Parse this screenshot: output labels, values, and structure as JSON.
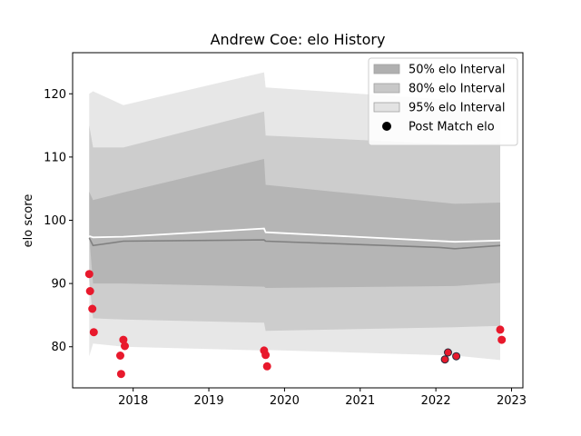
{
  "chart_data": {
    "type": "line",
    "title": "Andrew Coe: elo History",
    "xlabel": "",
    "ylabel": "elo score",
    "xlim": [
      2017.2,
      2023.15
    ],
    "ylim": [
      73.5,
      126.5
    ],
    "xticks": [
      {
        "value": 2018,
        "label": "2018"
      },
      {
        "value": 2019,
        "label": "2019"
      },
      {
        "value": 2020,
        "label": "2020"
      },
      {
        "value": 2021,
        "label": "2021"
      },
      {
        "value": 2022,
        "label": "2022"
      },
      {
        "value": 2023,
        "label": "2023"
      }
    ],
    "yticks": [
      {
        "value": 80,
        "label": "80"
      },
      {
        "value": 90,
        "label": "90"
      },
      {
        "value": 100,
        "label": "100"
      },
      {
        "value": 110,
        "label": "110"
      },
      {
        "value": 120,
        "label": "120"
      }
    ],
    "grid": false,
    "legend_position": "top-right",
    "colors": {
      "band50": "#b0b0b0",
      "band80": "#c8c8c8",
      "band95": "#e3e3e3",
      "median_line": "#808080",
      "mean_line": "#ffffff",
      "points_fill": "#e8192c",
      "points_edge_default": "#e8192c",
      "points_edge_dark": "#2a2a3a"
    },
    "x": [
      2017.42,
      2017.47,
      2017.87,
      2019.73,
      2019.75,
      2022.25,
      2022.85
    ],
    "bands": [
      {
        "name": "50% elo Interval",
        "lower": [
          97.5,
          90.0,
          90.0,
          89.5,
          89.3,
          89.6,
          90.1
        ],
        "upper": [
          104.5,
          103.2,
          104.4,
          109.7,
          105.6,
          102.6,
          102.8
        ]
      },
      {
        "name": "80% elo Interval",
        "lower": [
          90.5,
          84.5,
          84.3,
          83.8,
          82.5,
          83.1,
          83.3
        ],
        "upper": [
          115.0,
          111.5,
          111.5,
          117.2,
          113.4,
          112.0,
          112.2
        ]
      },
      {
        "name": "95% elo Interval",
        "lower": [
          78.5,
          80.5,
          80.0,
          79.4,
          79.5,
          78.6,
          77.9
        ],
        "upper": [
          120.0,
          120.4,
          118.2,
          123.4,
          121.0,
          119.0,
          119.2
        ]
      }
    ],
    "median_series": {
      "x": [
        2017.42,
        2017.47,
        2017.87,
        2019.73,
        2019.75,
        2022.05,
        2022.25,
        2022.85
      ],
      "y": [
        97.2,
        96.0,
        96.7,
        96.9,
        96.7,
        95.7,
        95.5,
        96.0
      ]
    },
    "mean_series": {
      "x": [
        2017.42,
        2017.47,
        2017.87,
        2019.73,
        2019.75,
        2022.25,
        2022.85
      ],
      "y": [
        97.5,
        97.3,
        97.4,
        98.7,
        98.1,
        96.6,
        96.8
      ]
    },
    "points": {
      "name": "Post Match elo",
      "data": [
        {
          "x": 2017.42,
          "y": 91.5,
          "edge": "default"
        },
        {
          "x": 2017.43,
          "y": 88.8,
          "edge": "default"
        },
        {
          "x": 2017.46,
          "y": 86.0,
          "edge": "default"
        },
        {
          "x": 2017.48,
          "y": 82.3,
          "edge": "default"
        },
        {
          "x": 2017.83,
          "y": 78.6,
          "edge": "default"
        },
        {
          "x": 2017.84,
          "y": 75.7,
          "edge": "default"
        },
        {
          "x": 2017.87,
          "y": 81.1,
          "edge": "default"
        },
        {
          "x": 2017.89,
          "y": 80.1,
          "edge": "default"
        },
        {
          "x": 2019.73,
          "y": 79.4,
          "edge": "default"
        },
        {
          "x": 2019.75,
          "y": 78.7,
          "edge": "default"
        },
        {
          "x": 2019.77,
          "y": 76.9,
          "edge": "default"
        },
        {
          "x": 2022.12,
          "y": 78.0,
          "edge": "dark"
        },
        {
          "x": 2022.16,
          "y": 79.1,
          "edge": "dark"
        },
        {
          "x": 2022.27,
          "y": 78.5,
          "edge": "dark"
        },
        {
          "x": 2022.85,
          "y": 82.7,
          "edge": "default"
        },
        {
          "x": 2022.87,
          "y": 81.1,
          "edge": "default"
        }
      ]
    },
    "legend": [
      {
        "label": "50% elo Interval",
        "kind": "band",
        "color": "#b0b0b0"
      },
      {
        "label": "80% elo Interval",
        "kind": "band",
        "color": "#c8c8c8"
      },
      {
        "label": "95% elo Interval",
        "kind": "band",
        "color": "#e3e3e3"
      },
      {
        "label": "Post Match elo",
        "kind": "marker",
        "color": "#000000"
      }
    ]
  }
}
